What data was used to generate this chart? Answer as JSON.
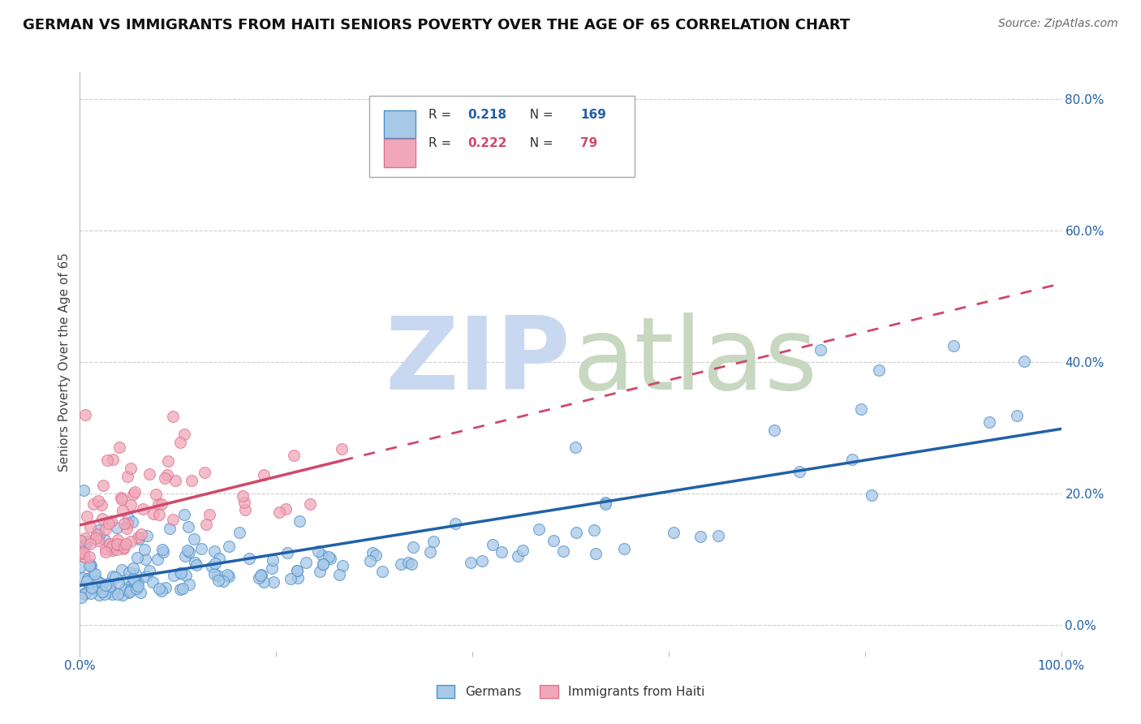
{
  "title": "GERMAN VS IMMIGRANTS FROM HAITI SENIORS POVERTY OVER THE AGE OF 65 CORRELATION CHART",
  "source": "Source: ZipAtlas.com",
  "ylabel": "Seniors Poverty Over the Age of 65",
  "xlim": [
    0.0,
    1.0
  ],
  "ylim": [
    -0.04,
    0.84
  ],
  "xticks": [
    0.0,
    0.2,
    0.4,
    0.6,
    0.8,
    1.0
  ],
  "ytick_positions": [
    0.0,
    0.2,
    0.4,
    0.6,
    0.8
  ],
  "ytick_labels_right": [
    "0.0%",
    "20.0%",
    "40.0%",
    "60.0%",
    "80.0%"
  ],
  "german_R": 0.218,
  "german_N": 169,
  "haiti_R": 0.222,
  "haiti_N": 79,
  "blue_scatter_color": "#a8c8e8",
  "blue_edge_color": "#4a90c8",
  "blue_line_color": "#2060a8",
  "pink_scatter_color": "#f0a8b8",
  "pink_edge_color": "#e07090",
  "pink_line_color": "#d04868",
  "watermark_zip_color": "#c8d8f0",
  "watermark_atlas_color": "#c8d8c0",
  "legend_label_german": "Germans",
  "legend_label_haiti": "Immigrants from Haiti",
  "tick_color": "#2060a8",
  "title_fontsize": 13,
  "axis_label_fontsize": 11,
  "tick_fontsize": 11,
  "background_color": "#ffffff",
  "grid_color": "#cccccc",
  "seed_german": 42,
  "seed_haiti": 7
}
